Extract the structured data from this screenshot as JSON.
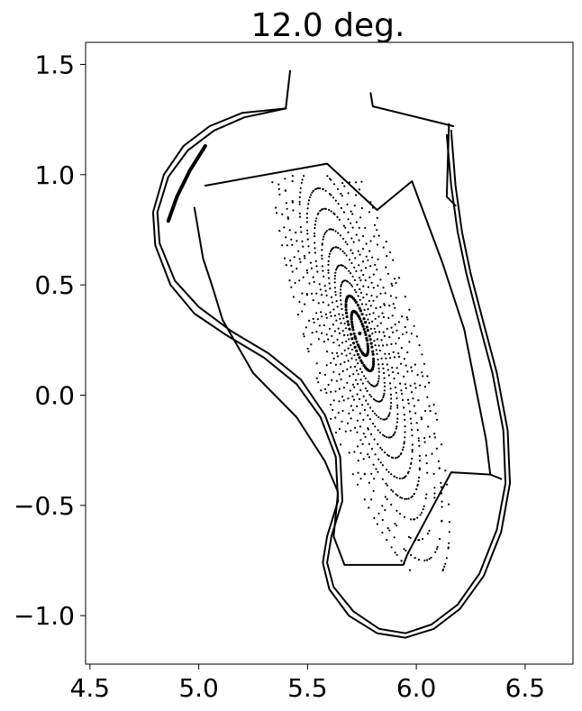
{
  "chart_data": {
    "type": "scatter",
    "title": "12.0 deg.",
    "xlabel": "",
    "ylabel": "",
    "xlim": [
      4.48,
      6.72
    ],
    "ylim": [
      -1.22,
      1.6
    ],
    "grid": false,
    "legend": "none",
    "xticks": [
      4.5,
      5.0,
      5.5,
      6.0,
      6.5
    ],
    "xtick_labels": [
      "4.5",
      "5.0",
      "5.5",
      "6.0",
      "6.5"
    ],
    "yticks": [
      -1.0,
      -0.5,
      0.0,
      0.5,
      1.0,
      1.5
    ],
    "ytick_labels": [
      "−1.0",
      "−0.5",
      "0.0",
      "0.5",
      "1.0",
      "1.5"
    ],
    "colors": {
      "ink": "#000000",
      "background": "#ffffff"
    },
    "series": [
      {
        "role": "vessel-outer",
        "points": [
          [
            5.42,
            1.47
          ],
          [
            5.4,
            1.3
          ],
          [
            5.2,
            1.28
          ],
          [
            5.05,
            1.22
          ],
          [
            4.93,
            1.13
          ],
          [
            4.84,
            1.0
          ],
          [
            4.79,
            0.83
          ],
          [
            4.8,
            0.68
          ],
          [
            4.87,
            0.5
          ],
          [
            4.98,
            0.37
          ],
          [
            5.13,
            0.27
          ],
          [
            5.3,
            0.17
          ],
          [
            5.45,
            0.05
          ],
          [
            5.56,
            -0.1
          ],
          [
            5.63,
            -0.28
          ],
          [
            5.64,
            -0.48
          ],
          [
            5.59,
            -0.64
          ],
          [
            5.57,
            -0.76
          ],
          [
            5.6,
            -0.88
          ],
          [
            5.69,
            -1.0
          ],
          [
            5.82,
            -1.08
          ],
          [
            5.95,
            -1.1
          ],
          [
            6.08,
            -1.06
          ],
          [
            6.2,
            -0.97
          ],
          [
            6.31,
            -0.82
          ],
          [
            6.39,
            -0.62
          ],
          [
            6.43,
            -0.4
          ],
          [
            6.42,
            -0.16
          ],
          [
            6.37,
            0.1
          ],
          [
            6.3,
            0.36
          ],
          [
            6.25,
            0.55
          ],
          [
            6.21,
            0.74
          ],
          [
            6.18,
            0.95
          ],
          [
            6.16,
            1.2
          ]
        ]
      },
      {
        "role": "vessel-inner",
        "points": [
          [
            5.4,
            1.3
          ],
          [
            5.21,
            1.26
          ],
          [
            5.07,
            1.2
          ],
          [
            4.95,
            1.11
          ],
          [
            4.86,
            0.99
          ],
          [
            4.81,
            0.83
          ],
          [
            4.82,
            0.69
          ],
          [
            4.89,
            0.52
          ],
          [
            5.0,
            0.4
          ],
          [
            5.15,
            0.29
          ],
          [
            5.32,
            0.19
          ],
          [
            5.47,
            0.07
          ],
          [
            5.58,
            -0.09
          ],
          [
            5.65,
            -0.28
          ],
          [
            5.66,
            -0.48
          ],
          [
            5.61,
            -0.64
          ],
          [
            5.59,
            -0.76
          ],
          [
            5.62,
            -0.87
          ],
          [
            5.71,
            -0.98
          ],
          [
            5.83,
            -1.06
          ],
          [
            5.95,
            -1.08
          ],
          [
            6.07,
            -1.04
          ],
          [
            6.19,
            -0.95
          ],
          [
            6.29,
            -0.81
          ],
          [
            6.37,
            -0.61
          ],
          [
            6.41,
            -0.4
          ],
          [
            6.4,
            -0.16
          ],
          [
            6.35,
            0.1
          ],
          [
            6.28,
            0.36
          ],
          [
            6.23,
            0.55
          ],
          [
            6.19,
            0.74
          ],
          [
            6.16,
            0.95
          ],
          [
            6.14,
            1.18
          ]
        ]
      },
      {
        "role": "top-baffle-right",
        "points": [
          [
            5.79,
            1.37
          ],
          [
            5.8,
            1.31
          ],
          [
            6.17,
            1.22
          ]
        ]
      },
      {
        "role": "right-guard",
        "points": [
          [
            6.15,
            1.23
          ],
          [
            6.14,
            0.9
          ],
          [
            6.18,
            0.86
          ]
        ]
      },
      {
        "role": "divertor-upper",
        "points": [
          [
            5.03,
            0.95
          ],
          [
            5.59,
            1.05
          ],
          [
            5.82,
            0.84
          ],
          [
            5.98,
            0.97
          ],
          [
            6.12,
            0.6
          ],
          [
            6.22,
            0.3
          ],
          [
            6.28,
            0.0
          ],
          [
            6.32,
            -0.2
          ],
          [
            6.34,
            -0.36
          ],
          [
            6.39,
            -0.38
          ]
        ]
      },
      {
        "role": "divertor-lower",
        "points": [
          [
            6.34,
            -0.36
          ],
          [
            6.16,
            -0.35
          ],
          [
            5.96,
            -0.72
          ],
          [
            5.94,
            -0.77
          ],
          [
            5.67,
            -0.77
          ],
          [
            5.62,
            -0.64
          ],
          [
            5.64,
            -0.44
          ],
          [
            5.58,
            -0.3
          ],
          [
            5.45,
            -0.1
          ],
          [
            5.25,
            0.1
          ],
          [
            5.11,
            0.34
          ],
          [
            5.06,
            0.5
          ],
          [
            5.02,
            0.62
          ],
          [
            4.98,
            0.85
          ]
        ]
      },
      {
        "role": "inboard-limiter",
        "points": [
          [
            4.86,
            0.79
          ],
          [
            4.9,
            0.9
          ],
          [
            4.96,
            1.02
          ],
          [
            5.03,
            1.13
          ]
        ]
      }
    ]
  }
}
